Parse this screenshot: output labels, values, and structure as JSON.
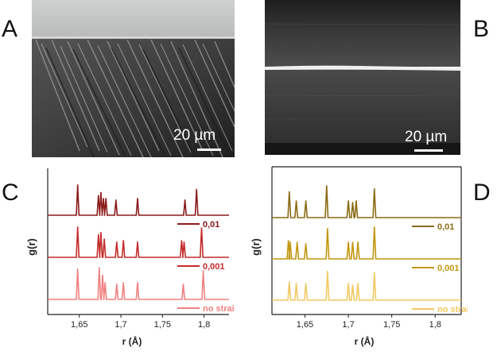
{
  "panel_labels": {
    "a": "A",
    "b": "B",
    "c": "C",
    "d": "D"
  },
  "images": {
    "a": {
      "scale_bar": "20 µm"
    },
    "b": {
      "scale_bar": "20 µm"
    }
  },
  "chart_data": [
    {
      "id": "C",
      "type": "line",
      "xlabel": "r (Å)",
      "ylabel": "g(r)",
      "xlim": [
        1.612,
        1.83
      ],
      "xticks": [
        "1,65",
        "1,7",
        "1,75",
        "1,8"
      ],
      "xtick_values": [
        1.65,
        1.7,
        1.75,
        1.8
      ],
      "series": [
        {
          "name": "0,01",
          "color": "#8b1a1a",
          "peaks": [
            {
              "x": 1.648,
              "y": 1.0
            },
            {
              "x": 1.673,
              "y": 0.65
            },
            {
              "x": 1.676,
              "y": 0.75
            },
            {
              "x": 1.679,
              "y": 0.55
            },
            {
              "x": 1.682,
              "y": 0.55
            },
            {
              "x": 1.694,
              "y": 0.5
            },
            {
              "x": 1.72,
              "y": 0.55
            },
            {
              "x": 1.777,
              "y": 0.5
            },
            {
              "x": 1.791,
              "y": 0.85
            }
          ]
        },
        {
          "name": "0,001",
          "color": "#c42a2a",
          "peaks": [
            {
              "x": 1.648,
              "y": 1.0
            },
            {
              "x": 1.673,
              "y": 0.75
            },
            {
              "x": 1.676,
              "y": 0.82
            },
            {
              "x": 1.68,
              "y": 0.6
            },
            {
              "x": 1.695,
              "y": 0.5
            },
            {
              "x": 1.703,
              "y": 0.55
            },
            {
              "x": 1.72,
              "y": 0.5
            },
            {
              "x": 1.773,
              "y": 0.55
            },
            {
              "x": 1.776,
              "y": 0.5
            },
            {
              "x": 1.797,
              "y": 0.97
            }
          ]
        },
        {
          "name": "no strain",
          "color": "#f08080",
          "peaks": [
            {
              "x": 1.648,
              "y": 1.0
            },
            {
              "x": 1.674,
              "y": 1.05
            },
            {
              "x": 1.678,
              "y": 0.8
            },
            {
              "x": 1.681,
              "y": 0.55
            },
            {
              "x": 1.695,
              "y": 0.5
            },
            {
              "x": 1.703,
              "y": 0.55
            },
            {
              "x": 1.72,
              "y": 0.55
            },
            {
              "x": 1.775,
              "y": 0.5
            },
            {
              "x": 1.799,
              "y": 0.95
            }
          ]
        }
      ]
    },
    {
      "id": "D",
      "type": "line",
      "xlabel": "r (Å)",
      "ylabel": "g(r)",
      "xlim": [
        1.612,
        1.83
      ],
      "xticks": [
        "1,65",
        "1,7",
        "1,75",
        "1,8"
      ],
      "xtick_values": [
        1.65,
        1.7,
        1.75,
        1.8
      ],
      "series": [
        {
          "name": "0,01",
          "color": "#8a6a14",
          "peaks": [
            {
              "x": 1.632,
              "y": 0.85
            },
            {
              "x": 1.64,
              "y": 0.55
            },
            {
              "x": 1.651,
              "y": 0.55
            },
            {
              "x": 1.675,
              "y": 1.05
            },
            {
              "x": 1.7,
              "y": 0.55
            },
            {
              "x": 1.705,
              "y": 0.5
            },
            {
              "x": 1.709,
              "y": 0.55
            },
            {
              "x": 1.73,
              "y": 0.95
            }
          ]
        },
        {
          "name": "0,001",
          "color": "#c2960e",
          "peaks": [
            {
              "x": 1.631,
              "y": 0.6
            },
            {
              "x": 1.633,
              "y": 0.55
            },
            {
              "x": 1.641,
              "y": 0.55
            },
            {
              "x": 1.651,
              "y": 0.5
            },
            {
              "x": 1.676,
              "y": 1.0
            },
            {
              "x": 1.7,
              "y": 0.55
            },
            {
              "x": 1.705,
              "y": 0.55
            },
            {
              "x": 1.711,
              "y": 0.55
            },
            {
              "x": 1.73,
              "y": 1.05
            }
          ]
        },
        {
          "name": "no strain",
          "color": "#f2c862",
          "peaks": [
            {
              "x": 1.632,
              "y": 0.6
            },
            {
              "x": 1.64,
              "y": 0.55
            },
            {
              "x": 1.651,
              "y": 0.55
            },
            {
              "x": 1.676,
              "y": 0.95
            },
            {
              "x": 1.7,
              "y": 0.55
            },
            {
              "x": 1.705,
              "y": 0.5
            },
            {
              "x": 1.711,
              "y": 0.55
            },
            {
              "x": 1.73,
              "y": 0.9
            }
          ]
        }
      ]
    }
  ]
}
